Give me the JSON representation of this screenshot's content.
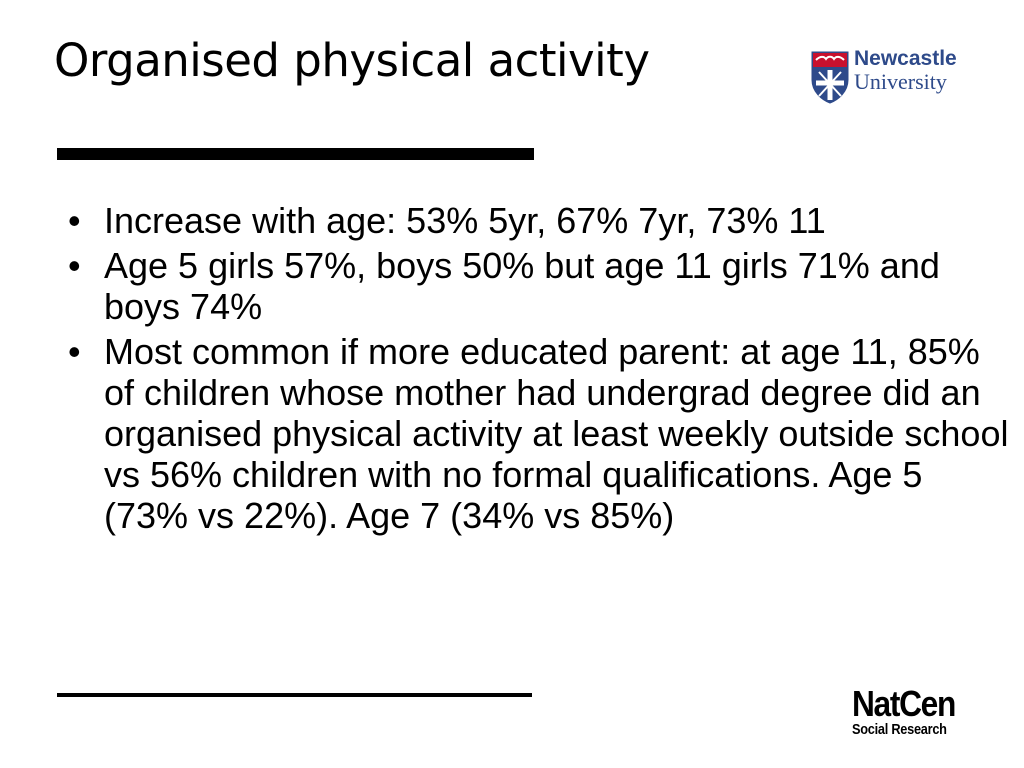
{
  "slide": {
    "title": "Organised physical activity",
    "bullet_symbol": "•",
    "bullets": [
      {
        "text": "Increase with age: 53% 5yr, 67% 7yr, 73% 11"
      },
      {
        "text": "Age 5 girls 57%, boys 50% but age 11 girls 71% and boys 74%"
      },
      {
        "text": "Most common if more educated parent: at age 11, 85% of children whose mother had undergrad degree did an organised physical activity at least weekly outside school vs 56% children with no formal qualifications. Age 5 (73% vs 22%). Age 7 (34% vs 85%)"
      }
    ]
  },
  "logos": {
    "newcastle": {
      "line1": "Newcastle",
      "line2": "University",
      "icon": "university-crest-icon",
      "color": "#2e4a8a"
    },
    "natcen": {
      "name": "NatCen",
      "subtitle": "Social Research"
    }
  },
  "colors": {
    "text": "#000000",
    "background": "#ffffff",
    "crest_red": "#c8102e",
    "crest_blue": "#2e4a8a"
  }
}
